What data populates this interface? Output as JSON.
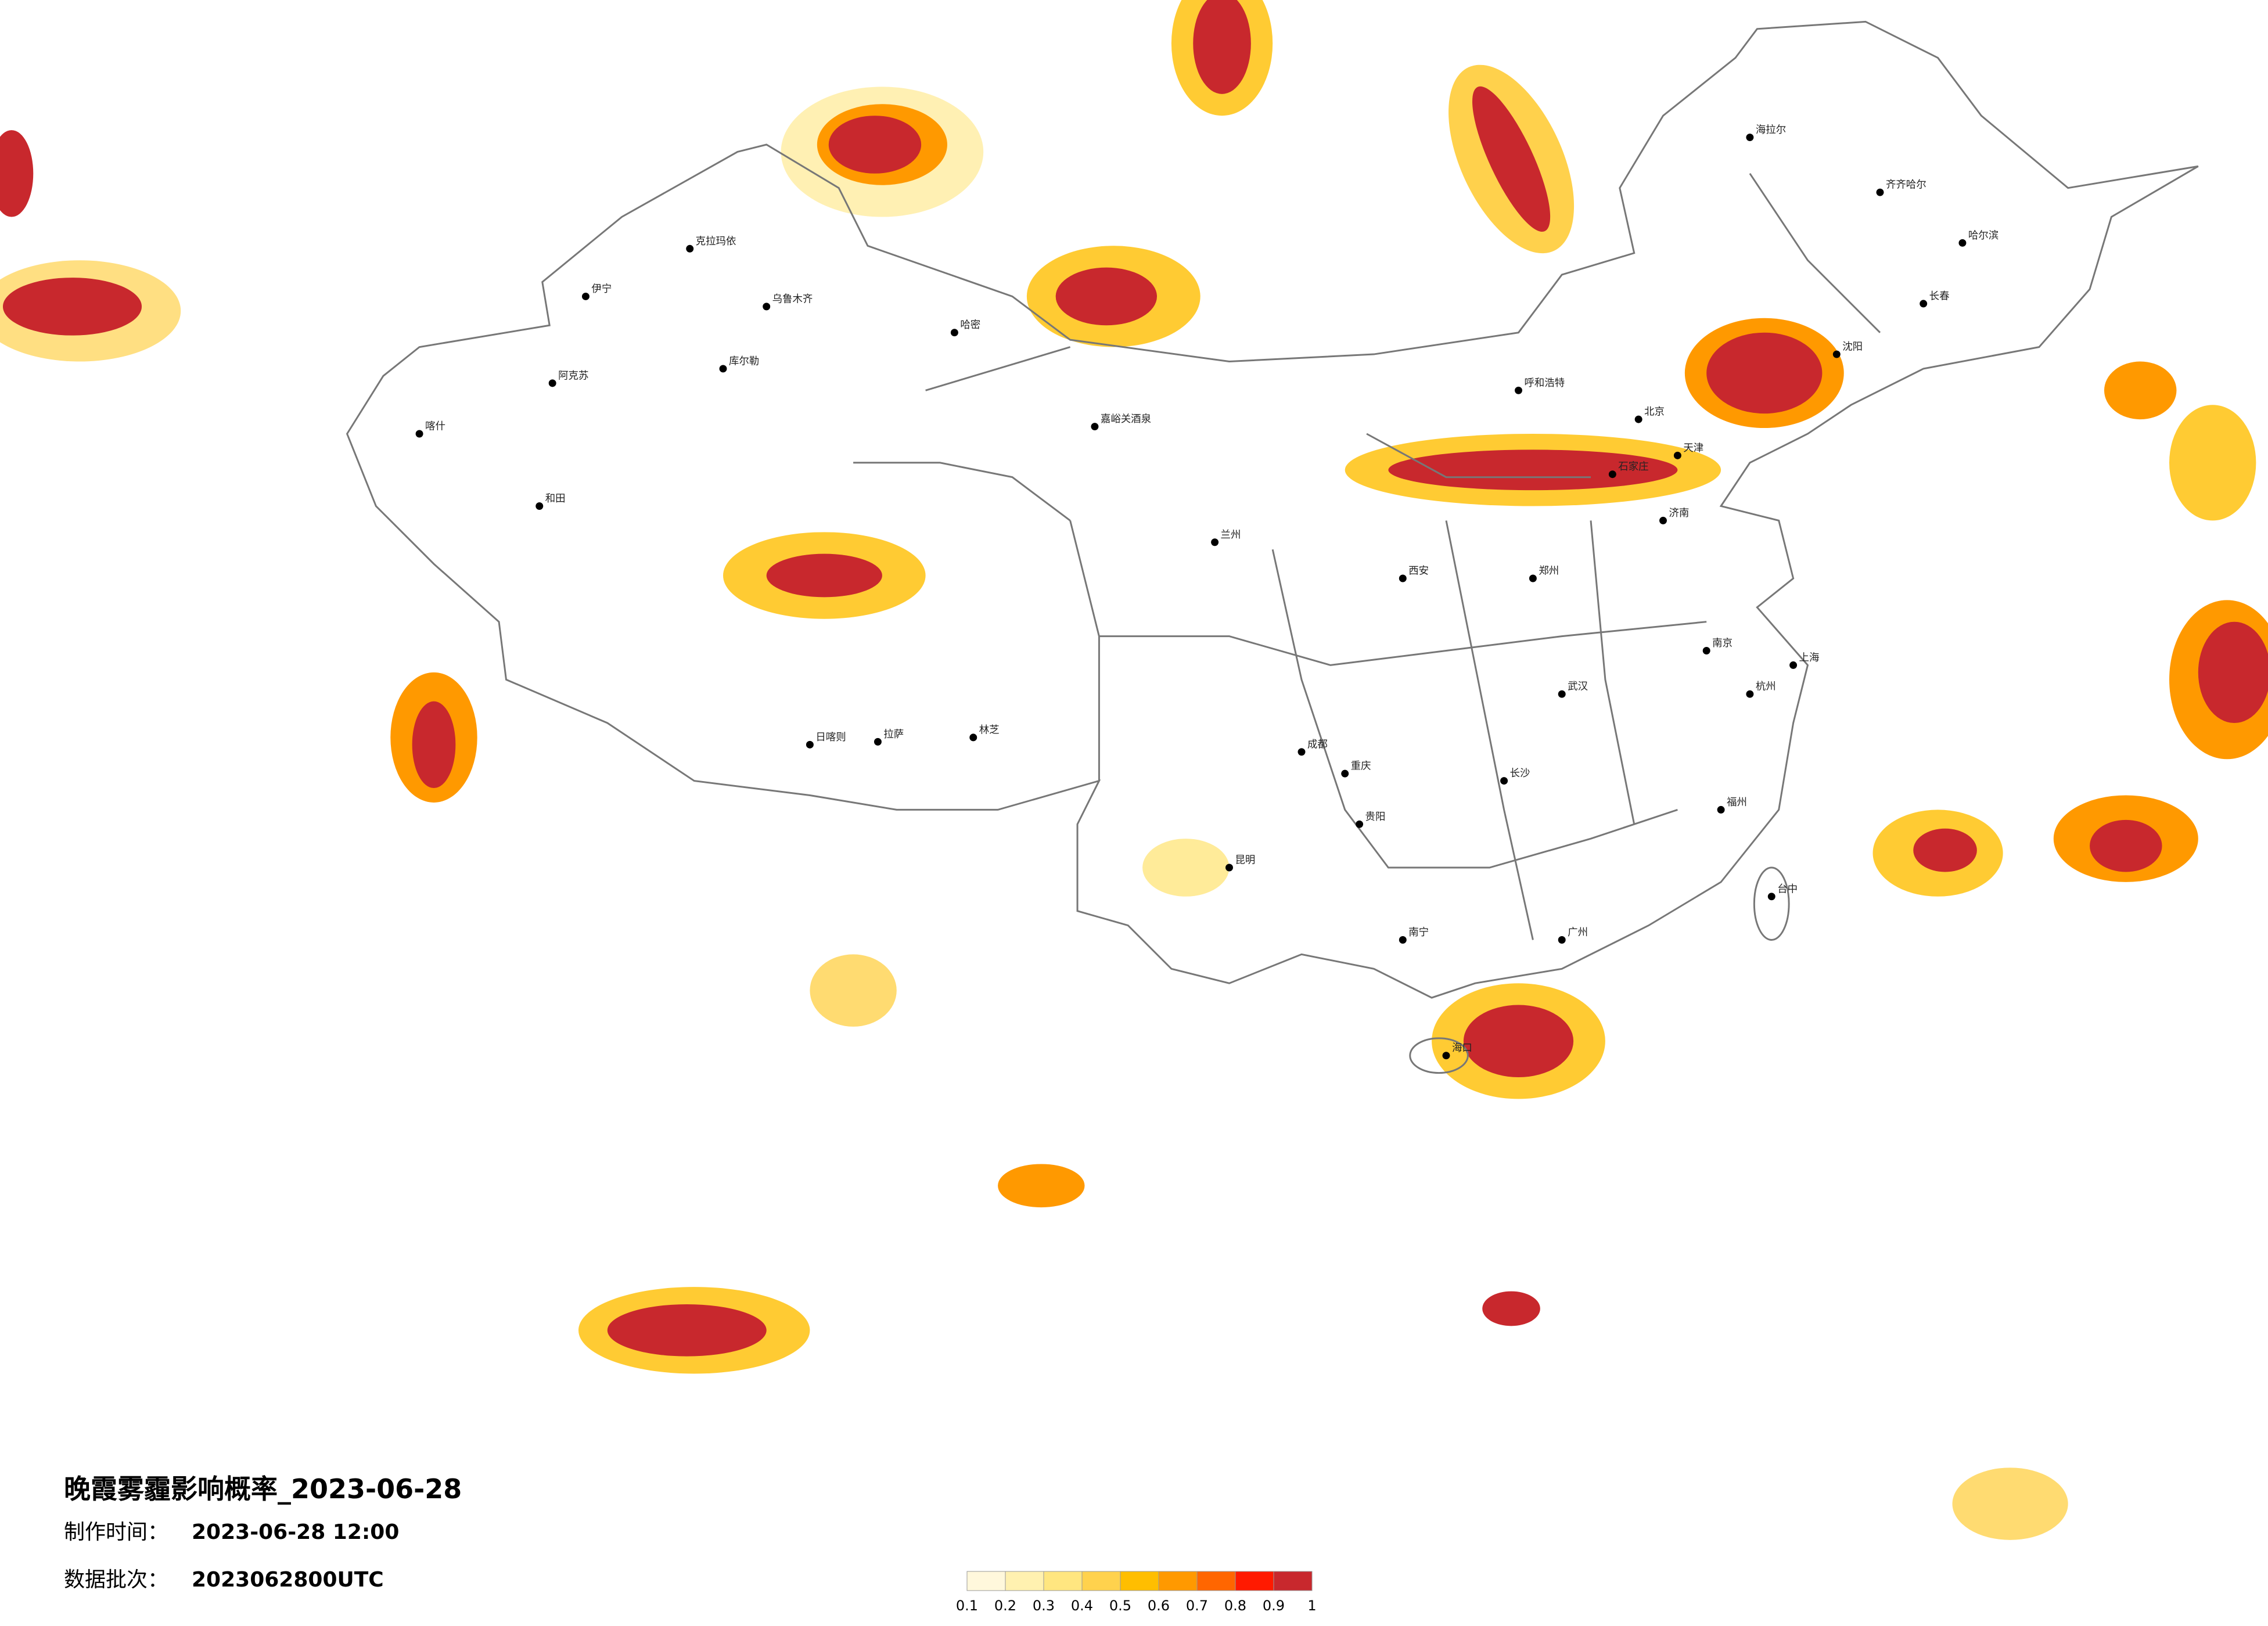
{
  "title": "晚霞雾霾影响概率_2023-06-28",
  "info": [
    {
      "label": "制作时间：",
      "value": "2023-06-28 12:00"
    },
    {
      "label": "数据批次：",
      "value": "2023062800UTC"
    }
  ],
  "legend": {
    "colors": [
      "#fff8dc",
      "#fff1b0",
      "#ffe680",
      "#ffd24d",
      "#ffbe00",
      "#ff9900",
      "#ff6600",
      "#ff1a00",
      "#c8282d"
    ],
    "ticks": [
      0.1,
      0.2,
      0.3,
      0.4,
      0.5,
      0.6,
      0.7,
      0.8,
      0.9,
      1
    ]
  },
  "cities": [
    "克拉玛依",
    "乌鲁木齐",
    "伊宁",
    "哈密",
    "库尔勒",
    "阿克苏",
    "喀什",
    "和田",
    "拉萨",
    "日喀则",
    "林芝",
    "嘉峪关酒泉",
    "海拉尔",
    "齐齐哈尔",
    "哈尔滨",
    "长春",
    "沈阳",
    "北京",
    "天津",
    "石家庄",
    "呼和浩特",
    "兰州",
    "西安",
    "成都",
    "重庆",
    "贵阳",
    "昆明",
    "南宁",
    "广州",
    "福州",
    "杭州",
    "上海",
    "南京",
    "武汉",
    "长沙",
    "郑州",
    "济南",
    "台中",
    "海口"
  ]
}
